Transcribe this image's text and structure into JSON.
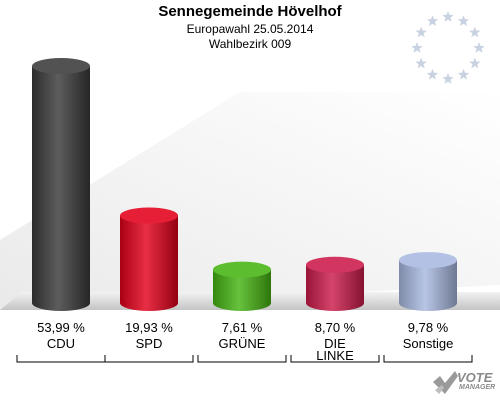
{
  "header": {
    "title": "Sennegemeinde Hövelhof",
    "subtitle": "Europawahl 25.05.2014",
    "district": "Wahlbezirk 009"
  },
  "logo": {
    "line1": "VOTE",
    "line2": "MANAGER"
  },
  "chart_data": {
    "type": "bar",
    "title": "Sennegemeinde Hövelhof",
    "categories": [
      "CDU",
      "SPD",
      "GRÜNE",
      "DIE LINKE",
      "Sonstige"
    ],
    "category_lines": [
      [
        "CDU"
      ],
      [
        "SPD"
      ],
      [
        "GRÜNE"
      ],
      [
        "DIE",
        "LINKE"
      ],
      [
        "Sonstige"
      ]
    ],
    "values": [
      53.99,
      19.93,
      7.61,
      8.7,
      9.78
    ],
    "value_labels": [
      "53,99 %",
      "19,93 %",
      "7,61 %",
      "8,70 %",
      "9,78 %"
    ],
    "colors": [
      "#3a3a3a",
      "#e3001b",
      "#46b512",
      "#cc1b4a",
      "#a9b9e1"
    ],
    "unit": "%",
    "ylim": [
      0,
      53.99
    ],
    "grid": false
  }
}
